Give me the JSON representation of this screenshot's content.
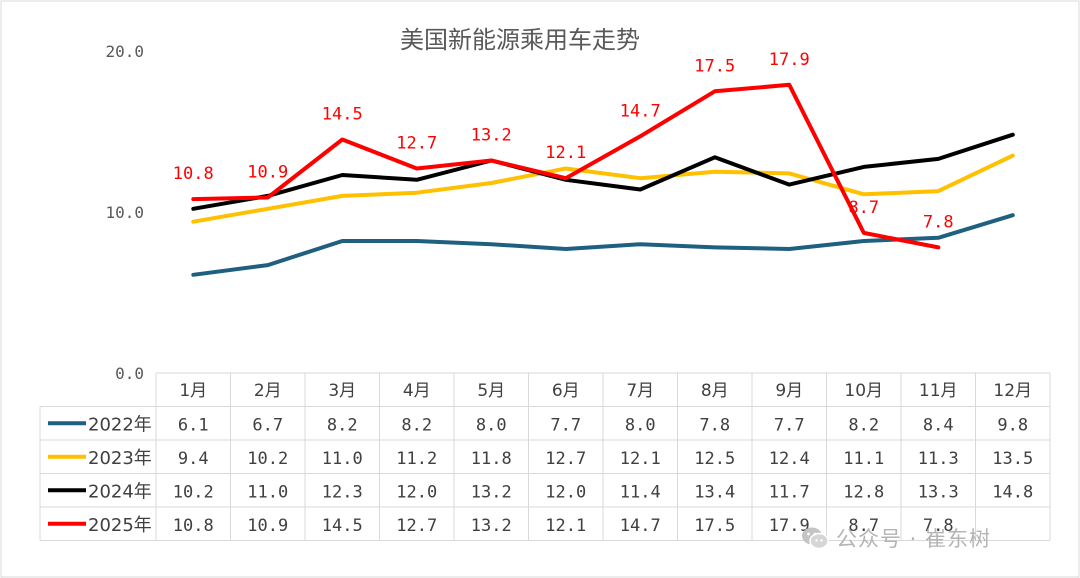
{
  "chart_data": {
    "type": "line",
    "title": "美国新能源乘用车走势",
    "categories": [
      "1月",
      "2月",
      "3月",
      "4月",
      "5月",
      "6月",
      "7月",
      "8月",
      "9月",
      "10月",
      "11月",
      "12月"
    ],
    "y_ticks": [
      "0.0",
      "10.0",
      "20.0"
    ],
    "ylim": [
      0,
      20
    ],
    "grid": false,
    "legend": "data-table-left",
    "series": [
      {
        "name": "2022年",
        "color": "#1f5f7f",
        "values": [
          6.1,
          6.7,
          8.2,
          8.2,
          8.0,
          7.7,
          8.0,
          7.8,
          7.7,
          8.2,
          8.4,
          9.8
        ],
        "table_text": [
          "6.1",
          "6.7",
          "8.2",
          "8.2",
          "8.0",
          "7.7",
          "8.0",
          "7.8",
          "7.7",
          "8.2",
          "8.4",
          "9.8"
        ]
      },
      {
        "name": "2023年",
        "color": "#ffc000",
        "values": [
          9.4,
          10.2,
          11.0,
          11.2,
          11.8,
          12.7,
          12.1,
          12.5,
          12.4,
          11.1,
          11.3,
          13.5
        ],
        "table_text": [
          "9.4",
          "10.2",
          "11.0",
          "11.2",
          "11.8",
          "12.7",
          "12.1",
          "12.5",
          "12.4",
          "11.1",
          "11.3",
          "13.5"
        ]
      },
      {
        "name": "2024年",
        "color": "#000000",
        "values": [
          10.2,
          11.0,
          12.3,
          12.0,
          13.2,
          12.0,
          11.4,
          13.4,
          11.7,
          12.8,
          13.3,
          14.8
        ],
        "table_text": [
          "10.2",
          "11.0",
          "12.3",
          "12.0",
          "13.2",
          "12.0",
          "11.4",
          "13.4",
          "11.7",
          "12.8",
          "13.3",
          "14.8"
        ]
      },
      {
        "name": "2025年",
        "color": "#ff0000",
        "values": [
          10.8,
          10.9,
          14.5,
          12.7,
          13.2,
          12.1,
          14.7,
          17.5,
          17.9,
          8.7,
          7.8,
          null
        ],
        "table_text": [
          "10.8",
          "10.9",
          "14.5",
          "12.7",
          "13.2",
          "12.1",
          "14.7",
          "17.5",
          "17.9",
          "8.7",
          "7.8",
          ""
        ],
        "data_labels": [
          "10.8",
          "10.9",
          "14.5",
          "12.7",
          "13.2",
          "12.1",
          "14.7",
          "17.5",
          "17.9",
          "8.7",
          "7.8",
          null
        ]
      }
    ]
  },
  "watermark": {
    "text": "公众号 · 崔东树",
    "icon": "wechat-icon",
    "color": "#b4b4b4"
  }
}
